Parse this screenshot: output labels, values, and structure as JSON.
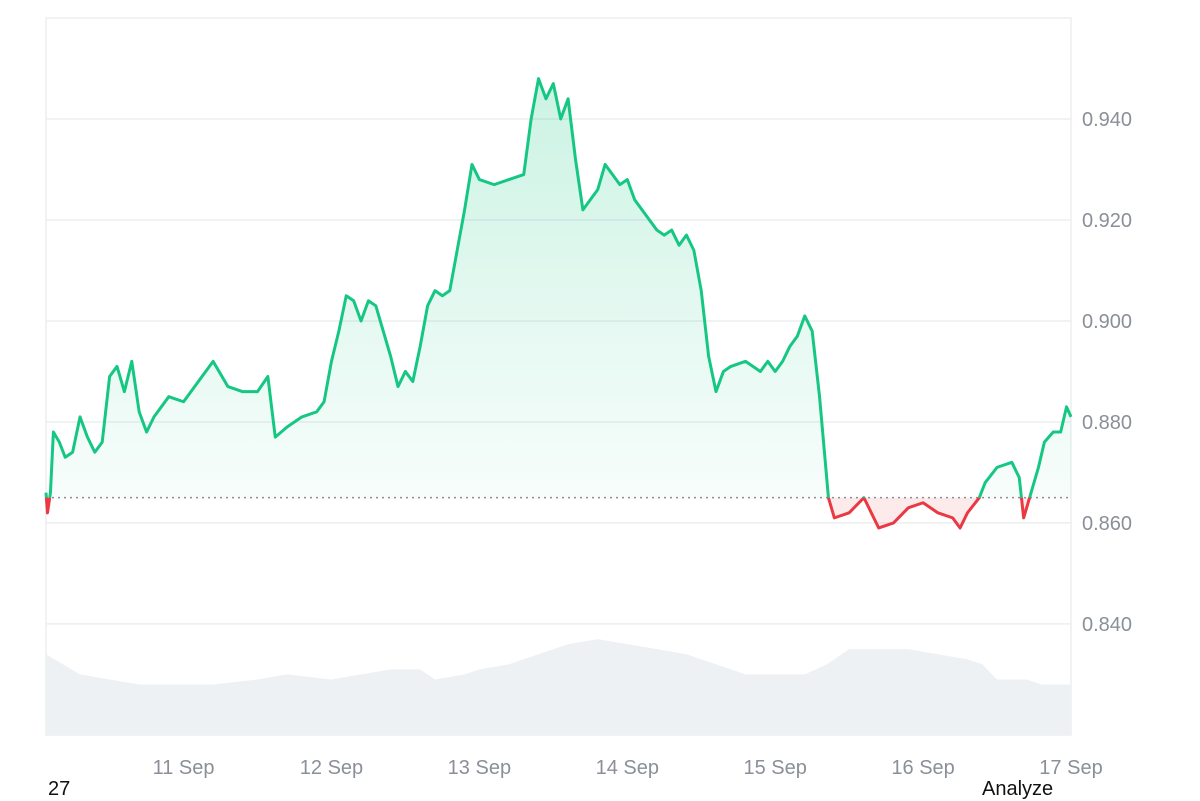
{
  "chart_data": {
    "type": "area",
    "baseline": 0.865,
    "ylim": [
      0.818,
      0.96
    ],
    "y_ticks": [
      "0.940",
      "0.920",
      "0.900",
      "0.880",
      "0.860",
      "0.840"
    ],
    "y_tick_values": [
      0.94,
      0.92,
      0.9,
      0.88,
      0.86,
      0.84
    ],
    "x_ticks": [
      "11 Sep",
      "12 Sep",
      "13 Sep",
      "14 Sep",
      "15 Sep",
      "16 Sep",
      "17 Sep"
    ],
    "x_tick_values": [
      11,
      12,
      13,
      14,
      15,
      16,
      17
    ],
    "xlim": [
      10.07,
      17.0
    ],
    "grid": true,
    "colors": {
      "up": "#16c784",
      "down": "#ea3943",
      "volume": "#eef1f4",
      "grid": "#eceef1",
      "baseline": "#8a8f98"
    },
    "series": [
      {
        "values": [
          [
            10.07,
            0.866
          ],
          [
            10.08,
            0.862
          ],
          [
            10.1,
            0.866
          ],
          [
            10.12,
            0.878
          ],
          [
            10.16,
            0.876
          ],
          [
            10.2,
            0.873
          ],
          [
            10.25,
            0.874
          ],
          [
            10.3,
            0.881
          ],
          [
            10.35,
            0.877
          ],
          [
            10.4,
            0.874
          ],
          [
            10.45,
            0.876
          ],
          [
            10.5,
            0.889
          ],
          [
            10.55,
            0.891
          ],
          [
            10.6,
            0.886
          ],
          [
            10.65,
            0.892
          ],
          [
            10.7,
            0.882
          ],
          [
            10.75,
            0.878
          ],
          [
            10.8,
            0.881
          ],
          [
            10.9,
            0.885
          ],
          [
            11.0,
            0.884
          ],
          [
            11.1,
            0.888
          ],
          [
            11.2,
            0.892
          ],
          [
            11.3,
            0.887
          ],
          [
            11.4,
            0.886
          ],
          [
            11.5,
            0.886
          ],
          [
            11.57,
            0.889
          ],
          [
            11.62,
            0.877
          ],
          [
            11.7,
            0.879
          ],
          [
            11.8,
            0.881
          ],
          [
            11.9,
            0.882
          ],
          [
            11.95,
            0.884
          ],
          [
            12.0,
            0.892
          ],
          [
            12.05,
            0.898
          ],
          [
            12.1,
            0.905
          ],
          [
            12.15,
            0.904
          ],
          [
            12.2,
            0.9
          ],
          [
            12.25,
            0.904
          ],
          [
            12.3,
            0.903
          ],
          [
            12.35,
            0.898
          ],
          [
            12.4,
            0.893
          ],
          [
            12.45,
            0.887
          ],
          [
            12.5,
            0.89
          ],
          [
            12.55,
            0.888
          ],
          [
            12.6,
            0.895
          ],
          [
            12.65,
            0.903
          ],
          [
            12.7,
            0.906
          ],
          [
            12.75,
            0.905
          ],
          [
            12.8,
            0.906
          ],
          [
            12.85,
            0.914
          ],
          [
            12.9,
            0.922
          ],
          [
            12.95,
            0.931
          ],
          [
            13.0,
            0.928
          ],
          [
            13.1,
            0.927
          ],
          [
            13.2,
            0.928
          ],
          [
            13.3,
            0.929
          ],
          [
            13.35,
            0.94
          ],
          [
            13.4,
            0.948
          ],
          [
            13.45,
            0.944
          ],
          [
            13.5,
            0.947
          ],
          [
            13.55,
            0.94
          ],
          [
            13.6,
            0.944
          ],
          [
            13.65,
            0.932
          ],
          [
            13.7,
            0.922
          ],
          [
            13.75,
            0.924
          ],
          [
            13.8,
            0.926
          ],
          [
            13.85,
            0.931
          ],
          [
            13.9,
            0.929
          ],
          [
            13.95,
            0.927
          ],
          [
            14.0,
            0.928
          ],
          [
            14.05,
            0.924
          ],
          [
            14.1,
            0.922
          ],
          [
            14.15,
            0.92
          ],
          [
            14.2,
            0.918
          ],
          [
            14.25,
            0.917
          ],
          [
            14.3,
            0.918
          ],
          [
            14.35,
            0.915
          ],
          [
            14.4,
            0.917
          ],
          [
            14.45,
            0.914
          ],
          [
            14.5,
            0.906
          ],
          [
            14.55,
            0.893
          ],
          [
            14.6,
            0.886
          ],
          [
            14.65,
            0.89
          ],
          [
            14.7,
            0.891
          ],
          [
            14.8,
            0.892
          ],
          [
            14.9,
            0.89
          ],
          [
            14.95,
            0.892
          ],
          [
            15.0,
            0.89
          ],
          [
            15.05,
            0.892
          ],
          [
            15.1,
            0.895
          ],
          [
            15.15,
            0.897
          ],
          [
            15.2,
            0.901
          ],
          [
            15.25,
            0.898
          ],
          [
            15.3,
            0.885
          ],
          [
            15.33,
            0.875
          ],
          [
            15.36,
            0.865
          ],
          [
            15.4,
            0.861
          ],
          [
            15.5,
            0.862
          ],
          [
            15.6,
            0.865
          ],
          [
            15.7,
            0.859
          ],
          [
            15.8,
            0.86
          ],
          [
            15.9,
            0.863
          ],
          [
            16.0,
            0.864
          ],
          [
            16.1,
            0.862
          ],
          [
            16.2,
            0.861
          ],
          [
            16.25,
            0.859
          ],
          [
            16.3,
            0.862
          ],
          [
            16.38,
            0.865
          ],
          [
            16.42,
            0.868
          ],
          [
            16.5,
            0.871
          ],
          [
            16.6,
            0.872
          ],
          [
            16.65,
            0.869
          ],
          [
            16.68,
            0.861
          ],
          [
            16.72,
            0.865
          ],
          [
            16.78,
            0.871
          ],
          [
            16.82,
            0.876
          ],
          [
            16.88,
            0.878
          ],
          [
            16.93,
            0.878
          ],
          [
            16.97,
            0.883
          ],
          [
            17.0,
            0.881
          ]
        ]
      }
    ],
    "volume": [
      [
        10.07,
        0.834
      ],
      [
        10.3,
        0.83
      ],
      [
        10.5,
        0.829
      ],
      [
        10.7,
        0.828
      ],
      [
        11.0,
        0.828
      ],
      [
        11.2,
        0.828
      ],
      [
        11.5,
        0.829
      ],
      [
        11.7,
        0.83
      ],
      [
        12.0,
        0.829
      ],
      [
        12.2,
        0.83
      ],
      [
        12.4,
        0.831
      ],
      [
        12.6,
        0.831
      ],
      [
        12.7,
        0.829
      ],
      [
        12.9,
        0.83
      ],
      [
        13.0,
        0.831
      ],
      [
        13.2,
        0.832
      ],
      [
        13.4,
        0.834
      ],
      [
        13.6,
        0.836
      ],
      [
        13.8,
        0.837
      ],
      [
        14.0,
        0.836
      ],
      [
        14.2,
        0.835
      ],
      [
        14.4,
        0.834
      ],
      [
        14.6,
        0.832
      ],
      [
        14.8,
        0.83
      ],
      [
        15.0,
        0.83
      ],
      [
        15.2,
        0.83
      ],
      [
        15.35,
        0.832
      ],
      [
        15.5,
        0.835
      ],
      [
        15.7,
        0.835
      ],
      [
        15.9,
        0.835
      ],
      [
        16.1,
        0.834
      ],
      [
        16.3,
        0.833
      ],
      [
        16.4,
        0.832
      ],
      [
        16.5,
        0.829
      ],
      [
        16.7,
        0.829
      ],
      [
        16.8,
        0.828
      ],
      [
        17.0,
        0.828
      ]
    ]
  },
  "footer": {
    "left": "27",
    "right": "Analyze"
  }
}
